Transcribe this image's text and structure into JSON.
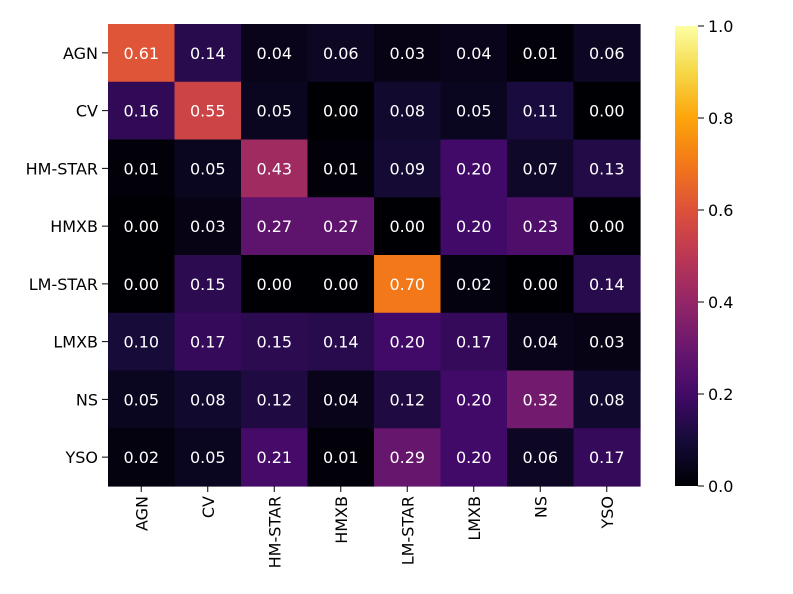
{
  "chart_data": {
    "type": "heatmap",
    "title": "",
    "xlabel": "",
    "ylabel": "",
    "rows": [
      "AGN",
      "CV",
      "HM-STAR",
      "HMXB",
      "LM-STAR",
      "LMXB",
      "NS",
      "YSO"
    ],
    "columns": [
      "AGN",
      "CV",
      "HM-STAR",
      "HMXB",
      "LM-STAR",
      "LMXB",
      "NS",
      "YSO"
    ],
    "values": [
      [
        0.61,
        0.14,
        0.04,
        0.06,
        0.03,
        0.04,
        0.01,
        0.06
      ],
      [
        0.16,
        0.55,
        0.05,
        0.0,
        0.08,
        0.05,
        0.11,
        0.0
      ],
      [
        0.01,
        0.05,
        0.43,
        0.01,
        0.09,
        0.2,
        0.07,
        0.13
      ],
      [
        0.0,
        0.03,
        0.27,
        0.27,
        0.0,
        0.2,
        0.23,
        0.0
      ],
      [
        0.0,
        0.15,
        0.0,
        0.0,
        0.7,
        0.02,
        0.0,
        0.14
      ],
      [
        0.1,
        0.17,
        0.15,
        0.14,
        0.2,
        0.17,
        0.04,
        0.03
      ],
      [
        0.05,
        0.08,
        0.12,
        0.04,
        0.12,
        0.2,
        0.32,
        0.08
      ],
      [
        0.02,
        0.05,
        0.21,
        0.01,
        0.29,
        0.2,
        0.06,
        0.17
      ]
    ],
    "colormap": "inferno",
    "value_range": [
      0.0,
      1.0
    ],
    "colorbar_ticks": [
      0.0,
      0.2,
      0.4,
      0.6,
      0.8,
      1.0
    ],
    "colorbar_tick_labels": [
      "0.0",
      "0.2",
      "0.4",
      "0.6",
      "0.8",
      "1.0"
    ],
    "annotation_color": "#ffffff"
  }
}
